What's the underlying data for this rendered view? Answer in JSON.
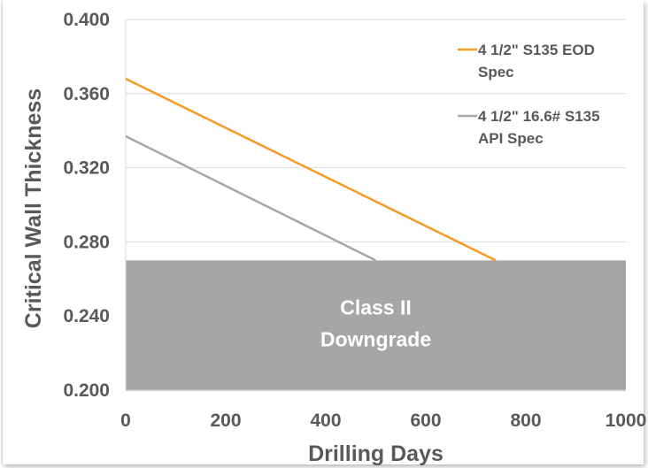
{
  "chart_data": {
    "type": "line",
    "xlabel": "Drilling Days",
    "ylabel": "Critical Wall Thickness",
    "xlim": [
      0,
      1000
    ],
    "ylim": [
      0.2,
      0.4
    ],
    "x_ticks": [
      "0",
      "200",
      "400",
      "600",
      "800",
      "1000"
    ],
    "y_ticks": [
      "0.200",
      "0.240",
      "0.280",
      "0.320",
      "0.360",
      "0.400"
    ],
    "grid": "horizontal",
    "legend_position": "top-right",
    "series": [
      {
        "name": [
          "4 1/2\" S135 EOD",
          "Spec"
        ],
        "color": "#F59A23",
        "x": [
          0,
          740
        ],
        "y": [
          0.368,
          0.27
        ]
      },
      {
        "name": [
          "4 1/2\" 16.6# S135",
          "API Spec"
        ],
        "color": "#A6A6A6",
        "x": [
          0,
          500
        ],
        "y": [
          0.337,
          0.27
        ]
      }
    ],
    "shaded_region": {
      "label": [
        "Class II",
        "Downgrade"
      ],
      "y_from": 0.2,
      "y_to": 0.27,
      "color": "#A6A6A6"
    }
  }
}
